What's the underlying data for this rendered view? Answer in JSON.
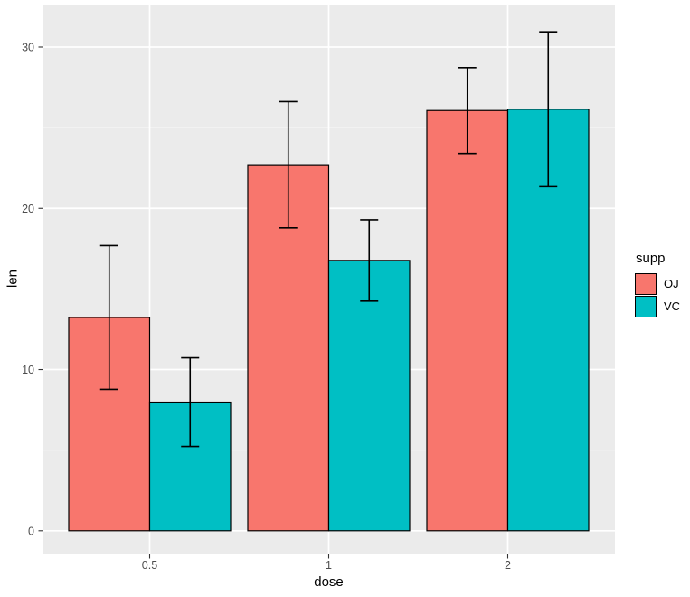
{
  "chart_data": {
    "type": "bar",
    "title": "",
    "xlabel": "dose",
    "ylabel": "len",
    "legend_title": "supp",
    "legend_position": "right",
    "categories": [
      "0.5",
      "1",
      "2"
    ],
    "series": [
      {
        "name": "OJ",
        "color": "#F8766D",
        "values": [
          13.23,
          22.7,
          26.06
        ],
        "sd": [
          4.46,
          3.91,
          2.66
        ]
      },
      {
        "name": "VC",
        "color": "#00BFC4",
        "values": [
          7.98,
          16.77,
          26.14
        ],
        "sd": [
          2.75,
          2.52,
          4.8
        ]
      }
    ],
    "y_ticks": [
      0,
      10,
      20,
      30
    ],
    "y_minor_ticks": [
      5,
      15,
      25
    ],
    "ylim": [
      -1.47,
      32.58
    ],
    "grid": true,
    "error_bars": "mean ± sd",
    "colors": {
      "panel_bg": "#EBEBEB",
      "grid": "#FFFFFF",
      "bar_border": "#000000",
      "errorbar": "#000000",
      "tick_mark": "#333333",
      "axis_text": "#4D4D4D",
      "axis_title": "#000000",
      "figure_bg": "#FFFFFF"
    }
  }
}
